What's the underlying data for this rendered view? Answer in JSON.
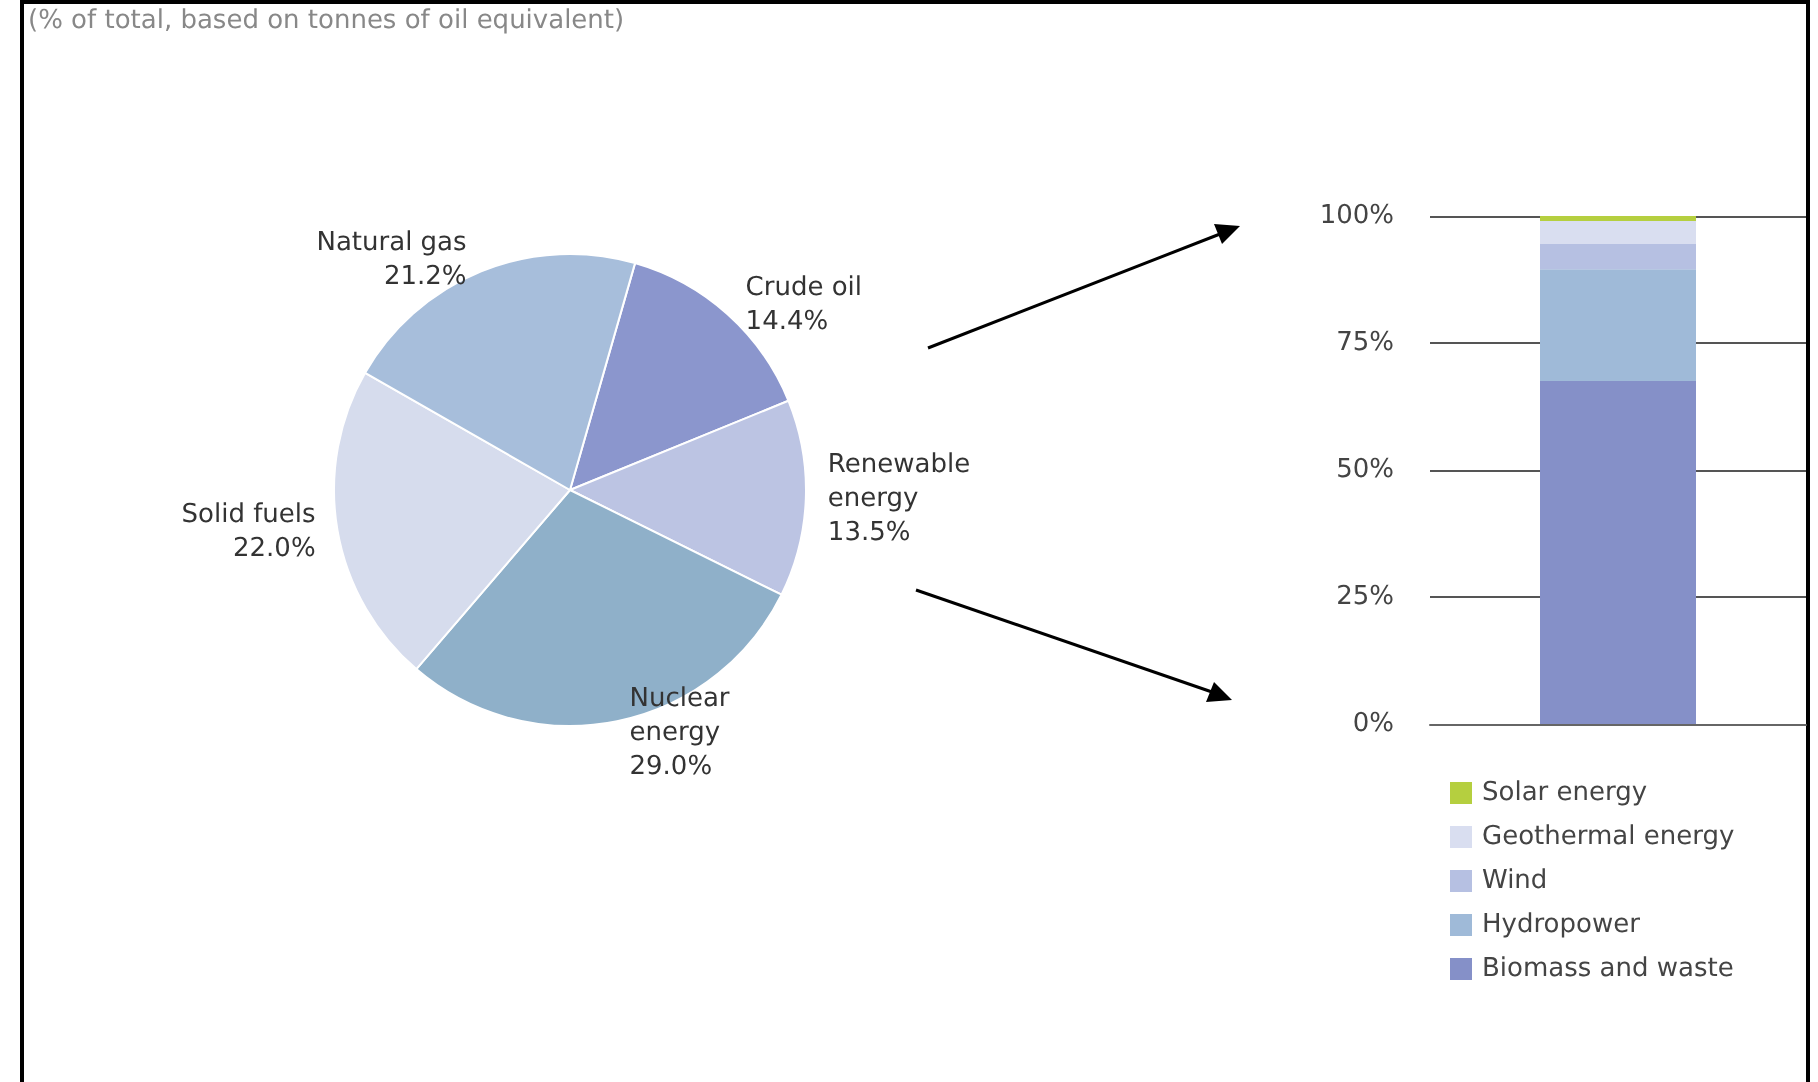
{
  "chart_data": [
    {
      "type": "pie",
      "annotations": [
        "(% of total, based on tonnes of oil equivalent)"
      ],
      "categories": [
        "Crude oil",
        "Renewable energy",
        "Nuclear energy",
        "Solid fuels",
        "Natural gas"
      ],
      "values": [
        14.4,
        13.5,
        29.0,
        22.0,
        21.2
      ],
      "value_labels": [
        "14.4%",
        "13.5%",
        "29.0%",
        "22.0%",
        "21.2%"
      ],
      "colors": [
        "#8b96cd",
        "#bcc4e3",
        "#8fb0c9",
        "#d6dced",
        "#a7bedb"
      ]
    },
    {
      "type": "bar",
      "categories": [
        null
      ],
      "stacked": true,
      "series": [
        {
          "name": "Biomass and waste",
          "color": "#8590c8",
          "values": [
            67.5
          ]
        },
        {
          "name": "Hydropower",
          "color": "#9fbad8",
          "values": [
            22
          ]
        },
        {
          "name": "Wind",
          "color": "#b6c0e2",
          "values": [
            5
          ]
        },
        {
          "name": "Geothermal energy",
          "color": "#d9def0",
          "values": [
            4.5
          ]
        },
        {
          "name": "Solar energy",
          "color": "#b5cf3f",
          "values": [
            1
          ]
        }
      ],
      "ylim": [
        0,
        100
      ],
      "yticks": [
        {
          "value": 0,
          "label": "0%"
        },
        {
          "value": 25,
          "label": "25%"
        },
        {
          "value": 50,
          "label": "50%"
        },
        {
          "value": 75,
          "label": "75%"
        },
        {
          "value": 100,
          "label": "100%"
        }
      ],
      "grid": "y",
      "legend": "bottom"
    }
  ]
}
